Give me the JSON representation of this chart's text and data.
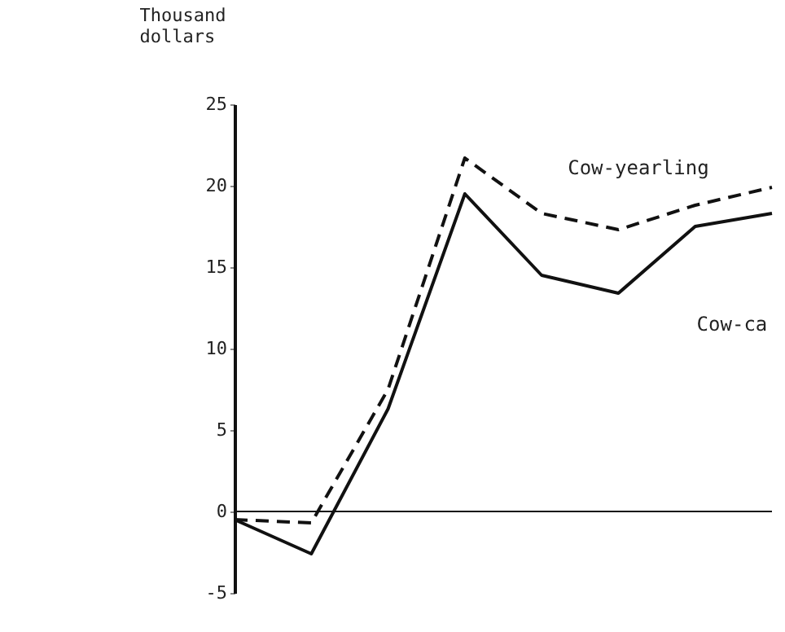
{
  "chart_data": {
    "type": "line",
    "ylabel": "Thousand dollars",
    "categories": [
      null,
      null,
      null,
      null,
      null,
      null,
      null,
      null
    ],
    "ylim": [
      -5,
      25
    ],
    "yticks": [
      -5,
      0,
      5,
      10,
      15,
      20,
      25
    ],
    "tick_labels": "y",
    "marker": "none",
    "series": [
      {
        "color": "#111111",
        "line_style": "dashed",
        "values": [
          -0.5,
          -0.7,
          7.5,
          21.7,
          18.3,
          17.3,
          18.8,
          19.9
        ]
      },
      {
        "color": "#111111",
        "line_style": "solid",
        "values": [
          -0.5,
          -2.6,
          6.3,
          19.5,
          14.5,
          13.4,
          17.5,
          18.3
        ]
      }
    ],
    "ref_lines": [
      {
        "axis": "y",
        "value": 0,
        "color": "#111111"
      }
    ],
    "annotations": [
      "Cow-yearling",
      "Cow-ca"
    ]
  }
}
